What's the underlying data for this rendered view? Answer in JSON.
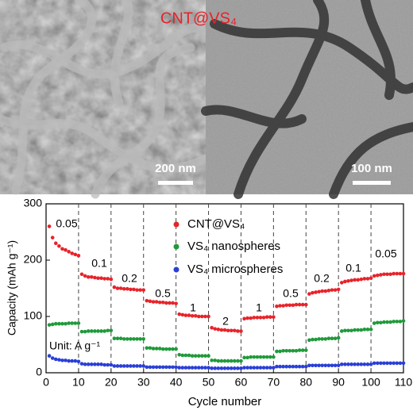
{
  "header": {
    "title": "CNT@VS₄",
    "scale_left": "200 nm",
    "scale_right": "100 nm"
  },
  "chart_data": {
    "type": "scatter",
    "xlabel": "Cycle number",
    "ylabel": "Capacity (mAh g⁻¹)",
    "xlim": [
      0,
      110
    ],
    "ylim": [
      0,
      300
    ],
    "xticks": [
      0,
      10,
      20,
      30,
      40,
      50,
      60,
      70,
      80,
      90,
      100,
      110
    ],
    "yticks": [
      0,
      100,
      200,
      300
    ],
    "dividers": [
      10,
      20,
      30,
      40,
      50,
      60,
      70,
      80,
      90,
      100
    ],
    "annotations": [
      "0.05",
      "0.1",
      "0.2",
      "0.5",
      "1",
      "2",
      "1",
      "0.5",
      "0.2",
      "0.1",
      "0.05",
      "Unit: A g⁻¹"
    ],
    "x": [
      1,
      2,
      3,
      4,
      5,
      6,
      7,
      8,
      9,
      10,
      11,
      12,
      13,
      14,
      15,
      16,
      17,
      18,
      19,
      20,
      21,
      22,
      23,
      24,
      25,
      26,
      27,
      28,
      29,
      30,
      31,
      32,
      33,
      34,
      35,
      36,
      37,
      38,
      39,
      40,
      41,
      42,
      43,
      44,
      45,
      46,
      47,
      48,
      49,
      50,
      51,
      52,
      53,
      54,
      55,
      56,
      57,
      58,
      59,
      60,
      61,
      62,
      63,
      64,
      65,
      66,
      67,
      68,
      69,
      70,
      71,
      72,
      73,
      74,
      75,
      76,
      77,
      78,
      79,
      80,
      81,
      82,
      83,
      84,
      85,
      86,
      87,
      88,
      89,
      90,
      91,
      92,
      93,
      94,
      95,
      96,
      97,
      98,
      99,
      100,
      101,
      102,
      103,
      104,
      105,
      106,
      107,
      108,
      109,
      110
    ],
    "series": [
      {
        "name": "CNT@VS₄",
        "color": "#e8232a",
        "values": [
          260,
          240,
          230,
          225,
          220,
          218,
          215,
          212,
          210,
          208,
          175,
          172,
          170,
          170,
          169,
          168,
          168,
          167,
          167,
          166,
          152,
          150,
          150,
          149,
          149,
          148,
          148,
          147,
          147,
          147,
          128,
          127,
          126,
          126,
          125,
          125,
          124,
          124,
          124,
          123,
          104,
          103,
          102,
          102,
          101,
          101,
          100,
          100,
          100,
          100,
          80,
          78,
          77,
          76,
          76,
          75,
          75,
          75,
          74,
          74,
          96,
          97,
          97,
          98,
          98,
          98,
          98,
          99,
          99,
          99,
          118,
          119,
          119,
          120,
          120,
          120,
          121,
          121,
          121,
          121,
          140,
          142,
          143,
          144,
          145,
          145,
          146,
          147,
          147,
          148,
          160,
          162,
          163,
          164,
          165,
          165,
          166,
          167,
          167,
          168,
          172,
          173,
          174,
          175,
          175,
          175,
          176,
          176,
          176,
          176
        ]
      },
      {
        "name": "VS₄ nanospheres",
        "color": "#1f9a3a",
        "values": [
          85,
          86,
          87,
          87,
          87,
          87,
          88,
          88,
          88,
          88,
          73,
          73,
          74,
          74,
          74,
          74,
          74,
          74,
          75,
          75,
          61,
          61,
          61,
          60,
          60,
          60,
          60,
          60,
          60,
          60,
          44,
          44,
          43,
          43,
          43,
          42,
          42,
          42,
          42,
          42,
          32,
          31,
          31,
          31,
          30,
          30,
          30,
          30,
          30,
          30,
          22,
          22,
          21,
          21,
          21,
          21,
          21,
          21,
          21,
          21,
          27,
          27,
          28,
          28,
          28,
          28,
          28,
          28,
          28,
          28,
          38,
          38,
          39,
          39,
          39,
          39,
          39,
          40,
          40,
          40,
          58,
          59,
          59,
          60,
          60,
          60,
          61,
          61,
          61,
          62,
          74,
          75,
          75,
          75,
          76,
          76,
          76,
          77,
          77,
          77,
          88,
          89,
          89,
          90,
          90,
          90,
          91,
          91,
          91,
          92
        ]
      },
      {
        "name": "VS₄ microspheres",
        "color": "#2a3fd6",
        "values": [
          30,
          26,
          24,
          23,
          22,
          22,
          21,
          21,
          21,
          20,
          16,
          15,
          15,
          15,
          15,
          15,
          15,
          14,
          14,
          14,
          12,
          12,
          12,
          12,
          12,
          12,
          12,
          12,
          12,
          12,
          10,
          10,
          10,
          10,
          10,
          10,
          10,
          10,
          10,
          10,
          9,
          9,
          9,
          9,
          9,
          9,
          9,
          9,
          9,
          9,
          8,
          8,
          8,
          8,
          8,
          8,
          8,
          8,
          8,
          8,
          9,
          9,
          9,
          9,
          9,
          9,
          9,
          9,
          9,
          9,
          11,
          11,
          11,
          11,
          11,
          11,
          11,
          11,
          11,
          11,
          13,
          13,
          13,
          13,
          13,
          13,
          13,
          13,
          13,
          13,
          15,
          15,
          15,
          15,
          15,
          15,
          15,
          15,
          15,
          15,
          17,
          17,
          17,
          17,
          17,
          17,
          17,
          17,
          17,
          17
        ]
      }
    ]
  }
}
